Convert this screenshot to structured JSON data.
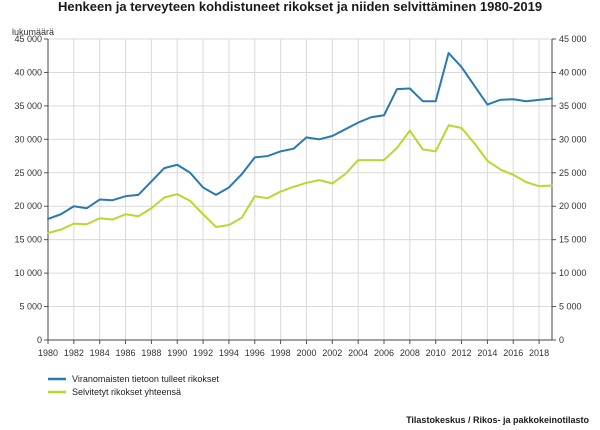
{
  "chart_data": {
    "type": "line",
    "title": "Henkeen ja terveyteen kohdistuneet rikokset ja niiden selvittäminen 1980-2019",
    "ylabel": "lukumäärä",
    "xlabel": "",
    "x": [
      1980,
      1981,
      1982,
      1983,
      1984,
      1985,
      1986,
      1987,
      1988,
      1989,
      1990,
      1991,
      1992,
      1993,
      1994,
      1995,
      1996,
      1997,
      1998,
      1999,
      2000,
      2001,
      2002,
      2003,
      2004,
      2005,
      2006,
      2007,
      2008,
      2009,
      2010,
      2011,
      2012,
      2013,
      2014,
      2015,
      2016,
      2017,
      2018,
      2019
    ],
    "x_ticks": [
      "1980",
      "1982",
      "1984",
      "1986",
      "1988",
      "1990",
      "1992",
      "1994",
      "1996",
      "1998",
      "2000",
      "2002",
      "2004",
      "2006",
      "2008",
      "2010",
      "2012",
      "2014",
      "2016",
      "2018"
    ],
    "y_ticks": [
      "0",
      "5 000",
      "10 000",
      "15 000",
      "20 000",
      "25 000",
      "30 000",
      "35 000",
      "40 000",
      "45 000"
    ],
    "ylim": [
      0,
      45000
    ],
    "grid": true,
    "legend_position": "bottom-left",
    "series": [
      {
        "name": "Viranomaisten tietoon tulleet rikokset",
        "color": "#2a7ab0",
        "values": [
          18100,
          18800,
          20000,
          19700,
          21000,
          20900,
          21500,
          21700,
          23700,
          25700,
          26200,
          25000,
          22800,
          21700,
          22800,
          24800,
          27300,
          27500,
          28200,
          28600,
          30300,
          30000,
          30500,
          31500,
          32500,
          33300,
          33600,
          37500,
          37600,
          35700,
          35700,
          42900,
          40800,
          38000,
          35200,
          35900,
          36000,
          35700,
          35900,
          36100
        ]
      },
      {
        "name": "Selvitetyt rikokset yhteensä",
        "color": "#bcd631",
        "values": [
          16000,
          16500,
          17400,
          17300,
          18200,
          18000,
          18800,
          18500,
          19700,
          21300,
          21800,
          20800,
          18800,
          16900,
          17200,
          18300,
          21500,
          21200,
          22200,
          22900,
          23500,
          23900,
          23400,
          24800,
          26900,
          26900,
          26900,
          28700,
          31300,
          28500,
          28200,
          32100,
          31700,
          29400,
          26800,
          25500,
          24700,
          23600,
          23000,
          23100
        ]
      }
    ]
  },
  "source": "Tilastokeskus / Rikos- ja pakkokeinotilasto"
}
